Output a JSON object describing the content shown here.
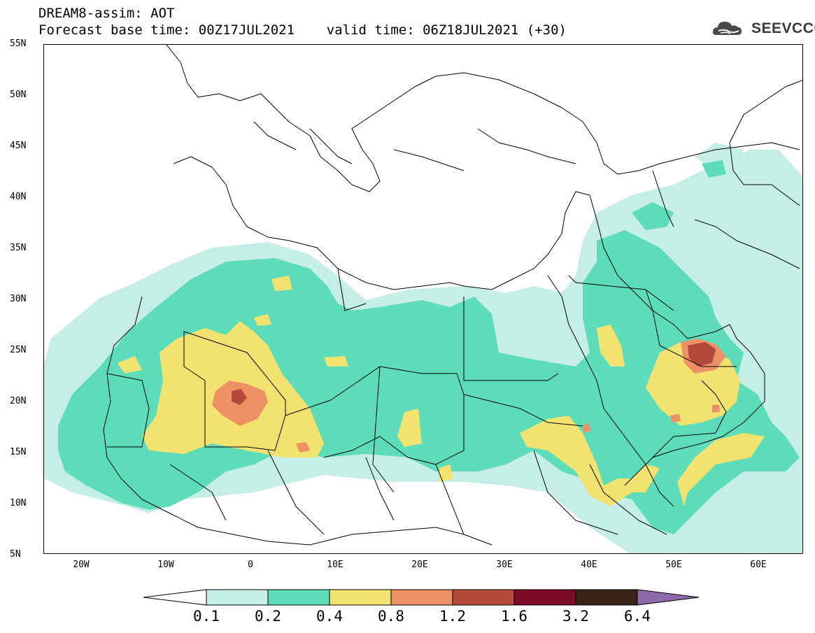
{
  "header": {
    "title_line1": "DREAM8-assim: AOT",
    "title_line2": "Forecast base time: 00Z17JUL2021    valid time: 06Z18JUL2021 (+30)"
  },
  "logo": {
    "text": "SEEVCCC",
    "icon": "cloud-icon"
  },
  "map": {
    "projection": "lat-lon",
    "lon_range": [
      -25,
      65
    ],
    "lat_range": [
      5,
      55
    ],
    "lat_labels": [
      "55N",
      "50N",
      "45N",
      "40N",
      "35N",
      "30N",
      "25N",
      "20N",
      "15N",
      "10N",
      "5N"
    ],
    "lon_labels": [
      "20W",
      "10W",
      "0",
      "10E",
      "20E",
      "30E",
      "40E",
      "50E",
      "60E"
    ],
    "basemap": "country borders and coastlines"
  },
  "colorbar": {
    "levels": [
      "0.1",
      "0.2",
      "0.4",
      "0.8",
      "1.2",
      "1.6",
      "3.2",
      "6.4"
    ],
    "colors": {
      "c0": "#ffffff",
      "c1": "#c4eee6",
      "c2": "#5cdcb8",
      "c3": "#f2e270",
      "c4": "#ec9166",
      "c5": "#b3493a",
      "c6": "#7d0a28",
      "c7": "#3a2214",
      "c8": "#8e6aac"
    }
  }
}
